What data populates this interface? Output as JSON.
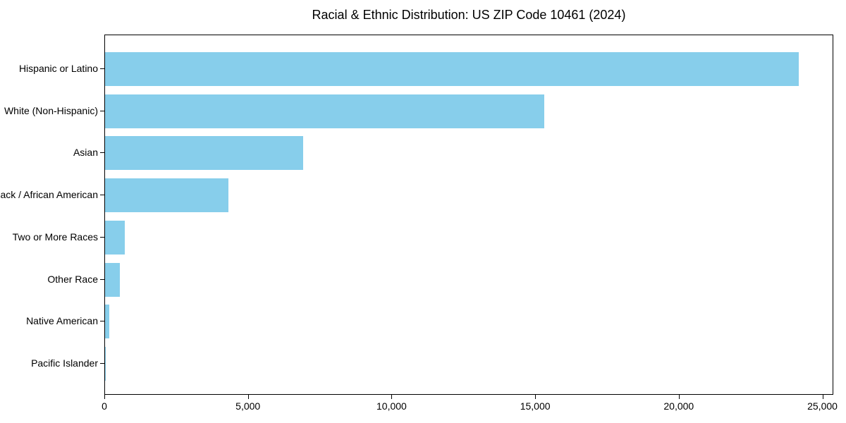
{
  "chart_data": {
    "type": "bar",
    "orientation": "horizontal",
    "title": "Racial & Ethnic Distribution: US ZIP Code 10461 (2024)",
    "categories": [
      "Hispanic or Latino",
      "White (Non-Hispanic)",
      "Asian",
      "Black / African American",
      "Two or More Races",
      "Other Race",
      "Native American",
      "Pacific Islander"
    ],
    "values": [
      24150,
      15300,
      6890,
      4290,
      690,
      520,
      150,
      25
    ],
    "xlabel": "",
    "ylabel": "",
    "xlim": [
      0,
      25380
    ],
    "x_ticks": [
      0,
      5000,
      10000,
      15000,
      20000,
      25000
    ],
    "x_tick_labels": [
      "0",
      "5,000",
      "10,000",
      "15,000",
      "20,000",
      "25,000"
    ],
    "bar_color": "#87CEEB",
    "background_color": "#ffffff",
    "axis_color": "#000000",
    "grid": false,
    "legend": null
  }
}
